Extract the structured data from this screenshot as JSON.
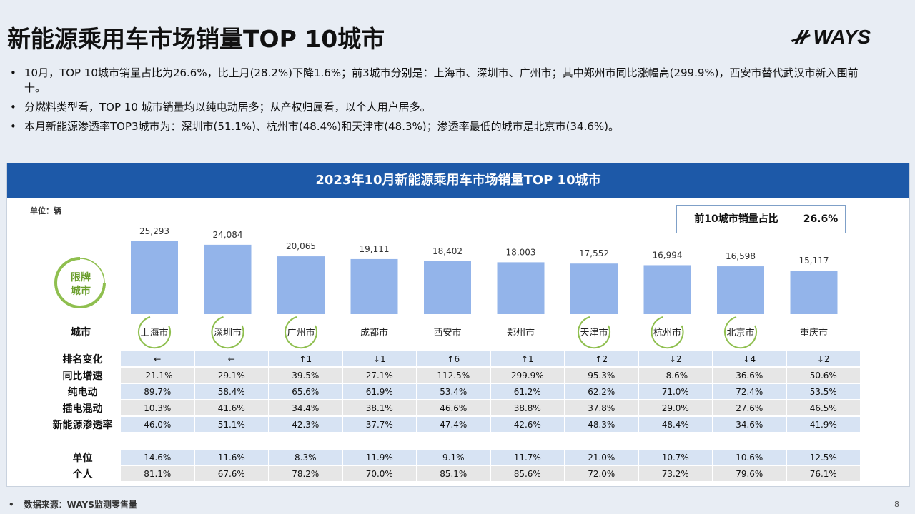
{
  "header": {
    "title": "新能源乘用车市场销量TOP 10城市",
    "logo_text": "WAYS"
  },
  "bullets": [
    "10月，TOP 10城市销量占比为26.6%，比上月(28.2%)下降1.6%；前3城市分别是：上海市、深圳市、广州市；其中郑州市同比涨幅高(299.9%)，西安市替代武汉市新入围前十。",
    "分燃料类型看，TOP 10 城市销量均以纯电动居多；从产权归属看，以个人用户居多。",
    "本月新能源渗透率TOP3城市为：深圳市(51.1%)、杭州市(48.4%)和天津市(48.3%)；渗透率最低的城市是北京市(34.6%)。"
  ],
  "panel": {
    "title": "2023年10月新能源乘用车市场销量TOP 10城市",
    "unit": "单位：辆",
    "share_label": "前10城市销量占比",
    "share_value": "26.6%",
    "restricted_badge": [
      "限牌",
      "城市"
    ],
    "city_row_label": "城市"
  },
  "colors": {
    "bar": "#93b4ea",
    "header": "#1d59a8",
    "circle": "#8fbf4f"
  },
  "chart_data": {
    "type": "bar",
    "categories": [
      "上海市",
      "深圳市",
      "广州市",
      "成都市",
      "西安市",
      "郑州市",
      "天津市",
      "杭州市",
      "北京市",
      "重庆市"
    ],
    "values": [
      25293,
      24084,
      20065,
      19111,
      18402,
      18003,
      17552,
      16994,
      16598,
      15117
    ],
    "value_labels": [
      "25,293",
      "24,084",
      "20,065",
      "19,111",
      "18,402",
      "18,003",
      "17,552",
      "16,994",
      "16,598",
      "15,117"
    ],
    "restricted": [
      true,
      true,
      true,
      false,
      false,
      false,
      true,
      true,
      true,
      false
    ],
    "title": "2023年10月新能源乘用车市场销量TOP 10城市",
    "ylabel": "单位：辆",
    "ylim": [
      0,
      26000
    ]
  },
  "table": {
    "rows": [
      {
        "label": "排名变化",
        "values": [
          "←",
          "←",
          "↑1",
          "↓1",
          "↑6",
          "↑1",
          "↑2",
          "↓2",
          "↓4",
          "↓2"
        ]
      },
      {
        "label": "同比增速",
        "values": [
          "-21.1%",
          "29.1%",
          "39.5%",
          "27.1%",
          "112.5%",
          "299.9%",
          "95.3%",
          "-8.6%",
          "36.6%",
          "50.6%"
        ]
      },
      {
        "label": "纯电动",
        "values": [
          "89.7%",
          "58.4%",
          "65.6%",
          "61.9%",
          "53.4%",
          "61.2%",
          "62.2%",
          "71.0%",
          "72.4%",
          "53.5%"
        ]
      },
      {
        "label": "插电混动",
        "values": [
          "10.3%",
          "41.6%",
          "34.4%",
          "38.1%",
          "46.6%",
          "38.8%",
          "37.8%",
          "29.0%",
          "27.6%",
          "46.5%"
        ]
      },
      {
        "label": "新能源渗透率",
        "values": [
          "46.0%",
          "51.1%",
          "42.3%",
          "37.7%",
          "47.4%",
          "42.6%",
          "48.3%",
          "48.4%",
          "34.6%",
          "41.9%"
        ]
      }
    ],
    "rows2": [
      {
        "label": "单位",
        "values": [
          "14.6%",
          "11.6%",
          "8.3%",
          "11.9%",
          "9.1%",
          "11.7%",
          "21.0%",
          "10.7%",
          "10.6%",
          "12.5%"
        ]
      },
      {
        "label": "个人",
        "values": [
          "81.1%",
          "67.6%",
          "78.2%",
          "70.0%",
          "85.1%",
          "85.6%",
          "72.0%",
          "73.2%",
          "79.6%",
          "76.1%"
        ]
      }
    ]
  },
  "footer": {
    "source": "数据来源：WAYS监测零售量",
    "page": "8"
  }
}
